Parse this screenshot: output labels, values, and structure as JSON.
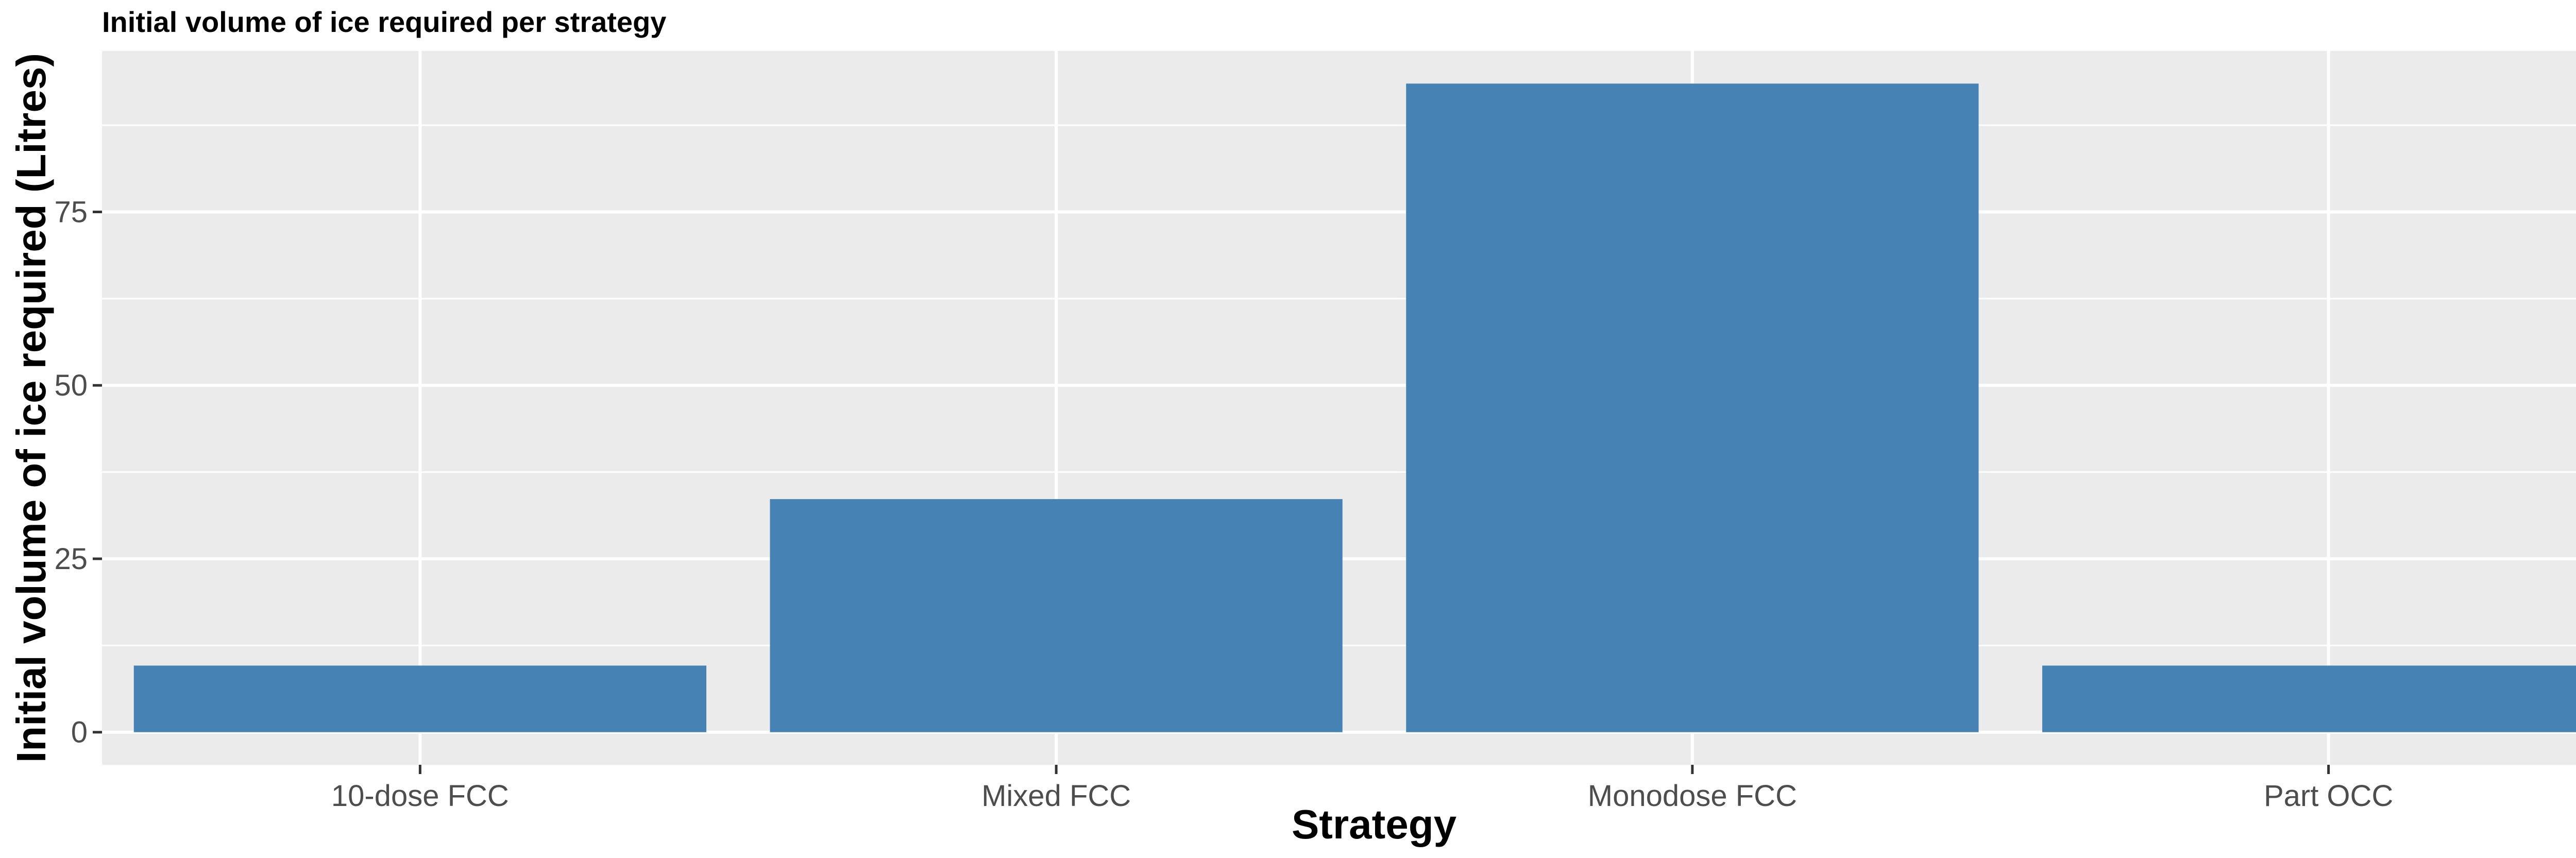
{
  "chart_data": {
    "type": "bar",
    "title": "Initial volume of ice required per strategy",
    "xlabel": "Strategy",
    "ylabel": "Initial volume of ice required (Litres)",
    "categories": [
      "10-dose FCC",
      "Mixed FCC",
      "Monodose FCC",
      "Part OCC"
    ],
    "values": [
      9.6,
      33.6,
      93.5,
      9.6
    ],
    "ylim": [
      -4.7,
      98.2
    ],
    "yticks": [
      0,
      25,
      50,
      75
    ],
    "ytick_labels": [
      "0",
      "25",
      "50",
      "75"
    ],
    "grid": true,
    "legend": "none",
    "colors": {
      "bar": "#4682B4",
      "panel": "#EBEBEB",
      "grid": "#FFFFFF",
      "tick": "#333333"
    }
  }
}
